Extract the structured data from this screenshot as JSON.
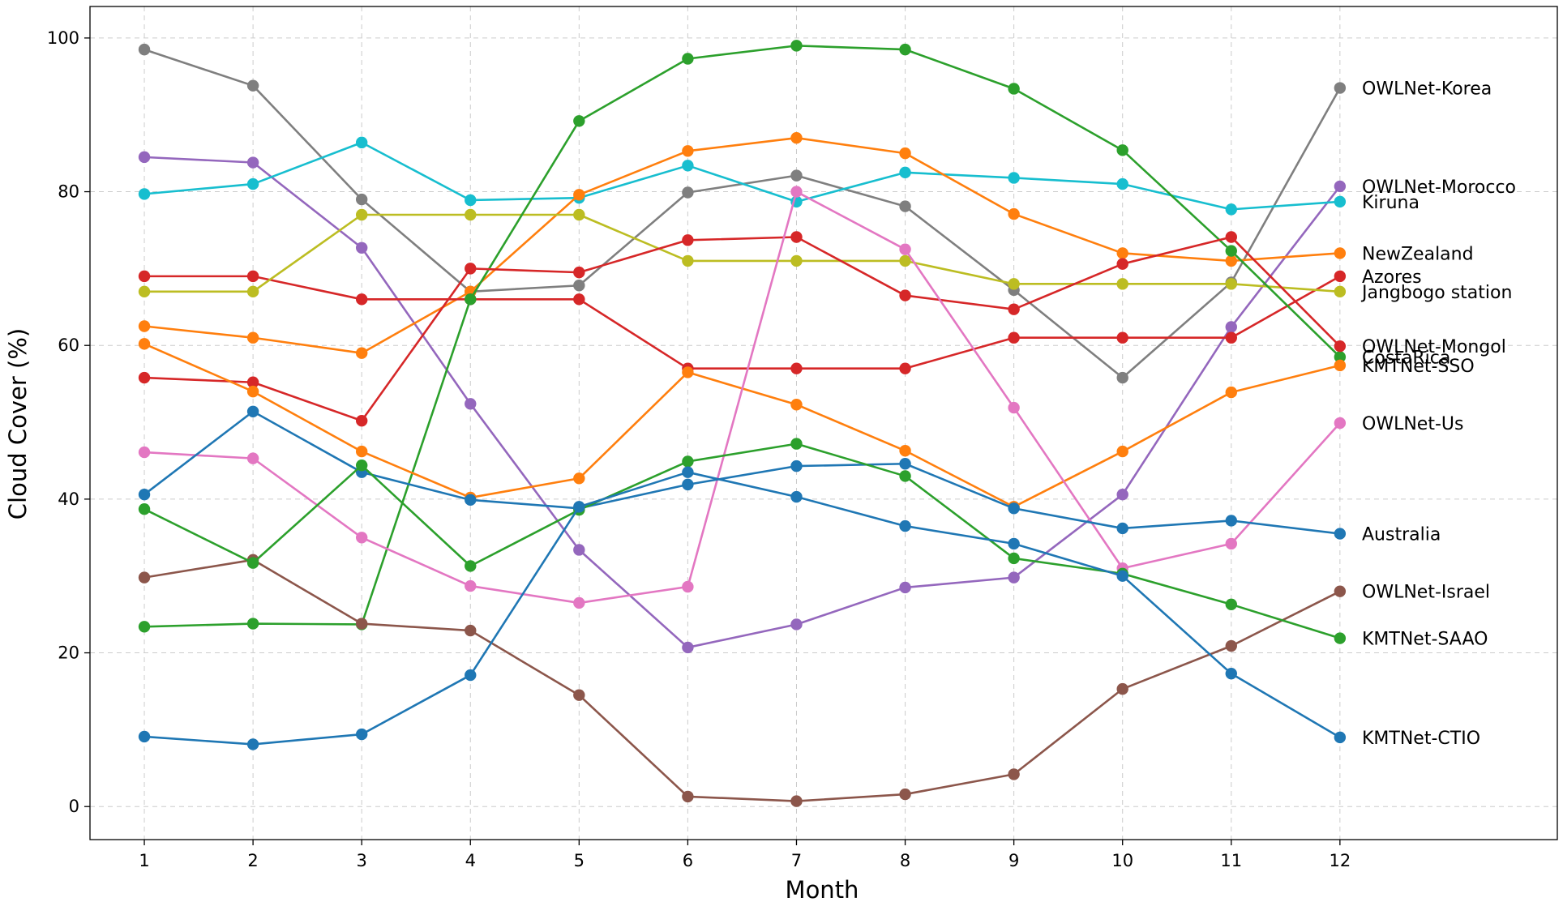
{
  "chart_data": {
    "type": "line",
    "title": "",
    "xlabel": "Month",
    "ylabel": "Cloud Cover (%)",
    "x": [
      1,
      2,
      3,
      4,
      5,
      6,
      7,
      8,
      9,
      10,
      11,
      12
    ],
    "x_tick_labels": [
      "1",
      "2",
      "3",
      "4",
      "5",
      "6",
      "7",
      "8",
      "9",
      "10",
      "11",
      "12"
    ],
    "xlim": [
      0.5,
      14.0
    ],
    "ylim": [
      -4.3,
      104.1
    ],
    "y_ticks": [
      0,
      20,
      40,
      60,
      80,
      100
    ],
    "y_tick_labels": [
      "0",
      "20",
      "40",
      "60",
      "80",
      "100"
    ],
    "grid": true,
    "legend": "labels at right end of each line",
    "series": [
      {
        "name": "OWLNet-Korea",
        "color": "#7f7f7f",
        "label_y": 93.5,
        "values": [
          98.5,
          93.8,
          79.0,
          67.0,
          67.8,
          79.9,
          82.1,
          78.1,
          67.2,
          55.8,
          68.2,
          93.5
        ]
      },
      {
        "name": "OWLNet-Morocco",
        "color": "#9467bd",
        "label_y": 80.7,
        "values": [
          84.5,
          83.8,
          72.7,
          52.4,
          33.4,
          20.7,
          23.7,
          28.5,
          29.8,
          40.6,
          62.4,
          80.7
        ]
      },
      {
        "name": "Kiruna",
        "color": "#17becf",
        "label_y": 78.7,
        "values": [
          79.7,
          81.0,
          86.4,
          78.9,
          79.2,
          83.4,
          78.7,
          82.5,
          81.8,
          81.0,
          77.7,
          78.7
        ]
      },
      {
        "name": "NewZealand",
        "color": "#ff7f0e",
        "label_y": 72.0,
        "values": [
          62.5,
          61.0,
          59.0,
          67.0,
          79.6,
          85.3,
          87.0,
          85.0,
          77.1,
          72.0,
          71.0,
          72.0
        ]
      },
      {
        "name": "Azores",
        "color": "#d62728",
        "label_y": 69.0,
        "values": [
          69.0,
          69.0,
          66.0,
          66.0,
          66.0,
          57.0,
          57.0,
          57.0,
          61.0,
          61.0,
          61.0,
          69.0
        ]
      },
      {
        "name": "Jangbogo station",
        "color": "#bcbd22",
        "label_y": 67.0,
        "values": [
          67.0,
          67.0,
          77.0,
          77.0,
          77.0,
          71.0,
          71.0,
          71.0,
          68.0,
          68.0,
          68.0,
          67.0
        ]
      },
      {
        "name": "CostaRica",
        "color": "#2ca02c",
        "label_y": 58.5,
        "values": [
          23.4,
          23.8,
          23.7,
          66.0,
          89.2,
          97.3,
          99.0,
          98.5,
          93.4,
          85.4,
          72.3,
          58.5
        ]
      },
      {
        "name": "OWLNet-Mongol",
        "color": "#d62728",
        "label_y": 59.9,
        "values": [
          55.8,
          55.2,
          50.2,
          70.0,
          69.5,
          73.7,
          74.1,
          66.5,
          64.7,
          70.6,
          74.1,
          59.9
        ]
      },
      {
        "name": "KMTNet-SSO",
        "color": "#ff7f0e",
        "label_y": 57.4,
        "values": [
          60.2,
          54.0,
          46.2,
          40.2,
          42.7,
          56.5,
          52.3,
          46.3,
          39.0,
          46.2,
          53.9,
          57.4
        ]
      },
      {
        "name": "OWLNet-Us",
        "color": "#e377c2",
        "label_y": 49.9,
        "values": [
          46.1,
          45.3,
          35.0,
          28.7,
          26.5,
          28.6,
          80.0,
          72.5,
          51.9,
          31.0,
          34.2,
          49.9
        ]
      },
      {
        "name": "Australia",
        "color": "#1f77b4",
        "label_y": 35.5,
        "values": [
          40.6,
          51.4,
          43.5,
          39.9,
          38.8,
          41.9,
          44.3,
          44.6,
          38.8,
          36.2,
          37.2,
          35.5
        ]
      },
      {
        "name": "OWLNet-Israel",
        "color": "#8c564b",
        "label_y": 28.0,
        "values": [
          29.8,
          32.1,
          23.8,
          22.9,
          14.5,
          1.3,
          0.7,
          1.6,
          4.2,
          15.3,
          20.9,
          28.0
        ]
      },
      {
        "name": "KMTNet-SAAO",
        "color": "#2ca02c",
        "label_y": 21.9,
        "values": [
          38.7,
          31.7,
          44.4,
          31.3,
          38.6,
          44.9,
          47.2,
          43.0,
          32.3,
          30.3,
          26.3,
          21.9
        ]
      },
      {
        "name": "KMTNet-CTIO",
        "color": "#1f77b4",
        "label_y": 9.0,
        "values": [
          9.1,
          8.1,
          9.4,
          17.1,
          39.0,
          43.5,
          40.3,
          36.5,
          34.2,
          30.0,
          17.3,
          9.0
        ]
      }
    ]
  }
}
